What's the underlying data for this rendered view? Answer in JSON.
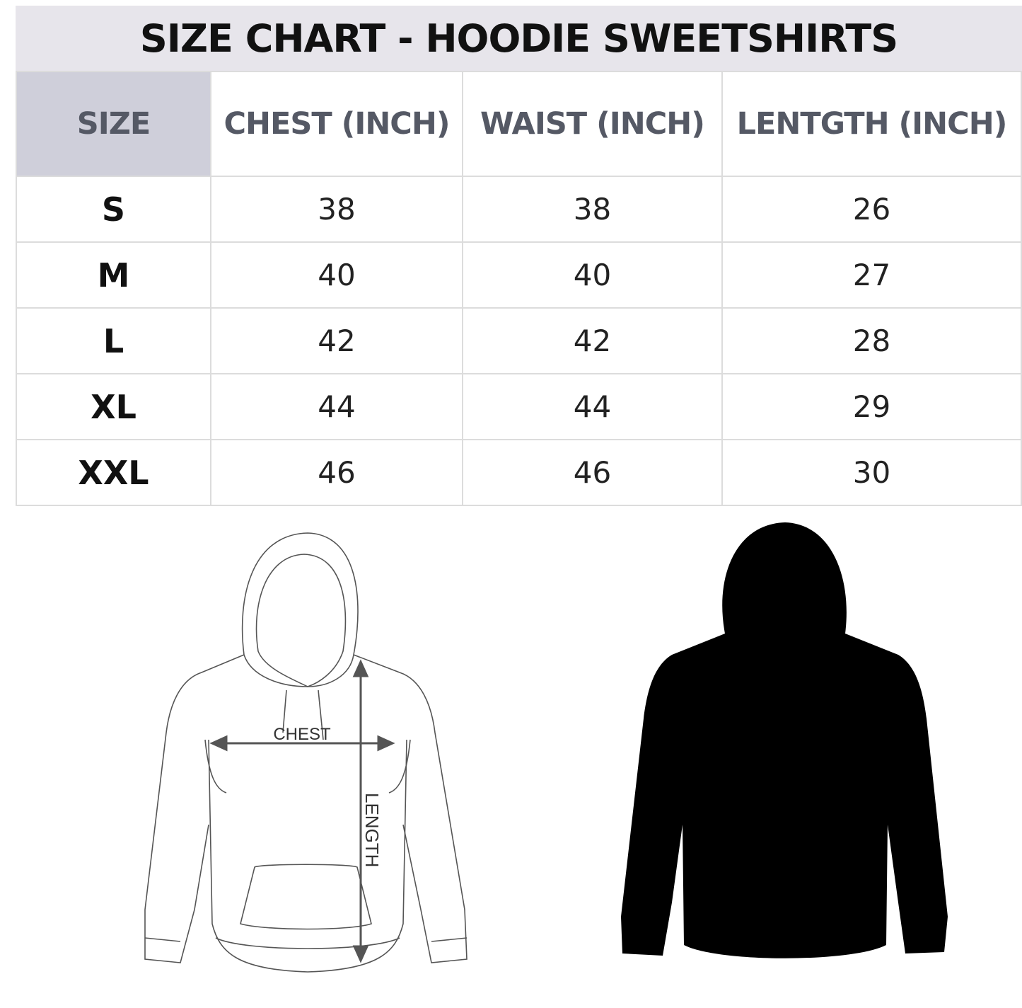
{
  "title": "SIZE CHART - HOODIE SWEETSHIRTS",
  "table": {
    "headers": [
      "SIZE",
      "CHEST (INCH)",
      "WAIST (INCH)",
      "LENTGTH (INCH)"
    ],
    "rows": [
      [
        "S",
        "38",
        "38",
        "26"
      ],
      [
        "M",
        "40",
        "40",
        "27"
      ],
      [
        "L",
        "42",
        "42",
        "28"
      ],
      [
        "XL",
        "44",
        "44",
        "29"
      ],
      [
        "XXL",
        "46",
        "46",
        "30"
      ]
    ]
  },
  "diagram": {
    "chest_label": "CHEST",
    "length_label": "LENGTH"
  },
  "colors": {
    "title_bg": "#e7e5eb",
    "size_header_bg": "#cfcfda",
    "header_text": "#555965",
    "hoodie_fill": "#000000"
  }
}
